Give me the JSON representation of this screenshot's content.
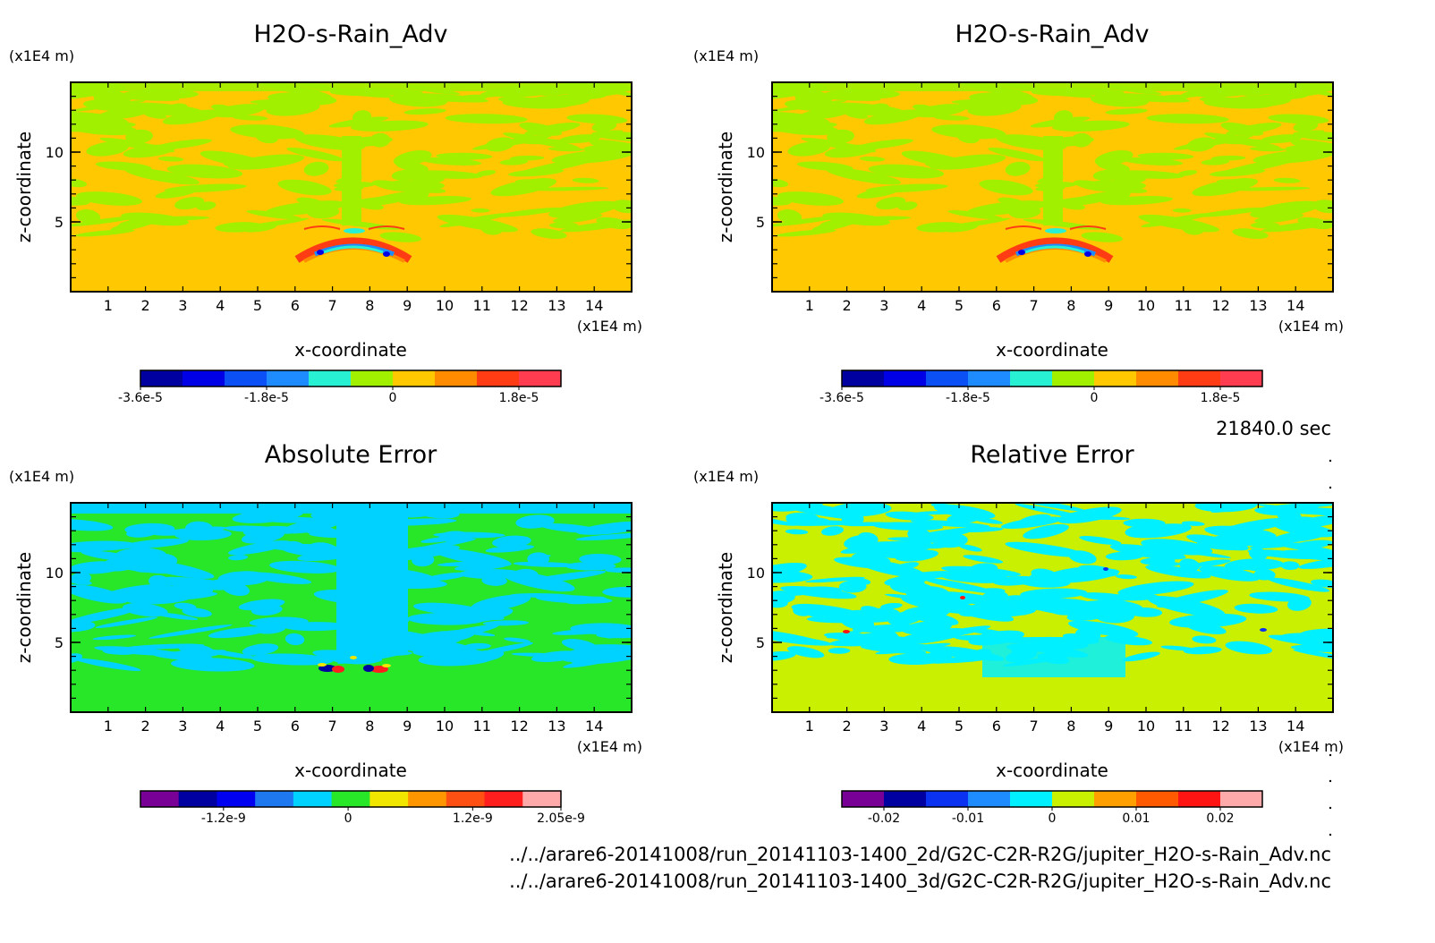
{
  "chart_data": [
    {
      "type": "heatmap",
      "title": "H2O-s-Rain_Adv",
      "xlabel": "x-coordinate",
      "ylabel": "z-coordinate",
      "x_unit": "(x1E4 m)",
      "y_unit": "(x1E4 m)",
      "xlim": [
        0,
        15
      ],
      "ylim": [
        0,
        15
      ],
      "x_ticks": [
        "1",
        "2",
        "3",
        "4",
        "5",
        "6",
        "7",
        "8",
        "9",
        "10",
        "11",
        "12",
        "13",
        "14"
      ],
      "y_ticks": [
        "5",
        "10"
      ],
      "background_level": "0 to 3e-6 (orange) with patches of -3e-6 to 0 (green)",
      "colorbar": {
        "colors": [
          "#0000a0",
          "#0000e6",
          "#0a50f5",
          "#1e8cff",
          "#28f0d2",
          "#a0f000",
          "#ffc800",
          "#ff8c00",
          "#ff3c14",
          "#ff3c50"
        ],
        "tick_labels": [
          "-3.6e-5",
          "-1.8e-5",
          "0",
          "1.8e-5"
        ],
        "tick_values": [
          -3.6e-05,
          -1.8e-05,
          0,
          1.8e-05
        ],
        "range": [
          -3.6e-05,
          2.4e-05
        ]
      }
    },
    {
      "type": "heatmap",
      "title": "H2O-s-Rain_Adv",
      "xlabel": "x-coordinate",
      "ylabel": "z-coordinate",
      "x_unit": "(x1E4 m)",
      "y_unit": "(x1E4 m)",
      "xlim": [
        0,
        15
      ],
      "ylim": [
        0,
        15
      ],
      "x_ticks": [
        "1",
        "2",
        "3",
        "4",
        "5",
        "6",
        "7",
        "8",
        "9",
        "10",
        "11",
        "12",
        "13",
        "14"
      ],
      "y_ticks": [
        "5",
        "10"
      ],
      "colorbar": {
        "colors": [
          "#0000a0",
          "#0000e6",
          "#0a50f5",
          "#1e8cff",
          "#28f0d2",
          "#a0f000",
          "#ffc800",
          "#ff8c00",
          "#ff3c14",
          "#ff3c50"
        ],
        "tick_labels": [
          "-3.6e-5",
          "-1.8e-5",
          "0",
          "1.8e-5"
        ],
        "tick_values": [
          -3.6e-05,
          -1.8e-05,
          0,
          1.8e-05
        ],
        "range": [
          -3.6e-05,
          2.4e-05
        ]
      }
    },
    {
      "type": "heatmap",
      "title": "Absolute Error",
      "xlabel": "x-coordinate",
      "ylabel": "z-coordinate",
      "x_unit": "(x1E4 m)",
      "y_unit": "(x1E4 m)",
      "xlim": [
        0,
        15
      ],
      "ylim": [
        0,
        15
      ],
      "x_ticks": [
        "1",
        "2",
        "3",
        "4",
        "5",
        "6",
        "7",
        "8",
        "9",
        "10",
        "11",
        "12",
        "13",
        "14"
      ],
      "y_ticks": [
        "5",
        "10"
      ],
      "colorbar": {
        "colors": [
          "#780096",
          "#0000a0",
          "#0000f0",
          "#1e78f0",
          "#00d2ff",
          "#28e628",
          "#f0e600",
          "#ff9600",
          "#ff5014",
          "#ff1e1e",
          "#ffaaaa"
        ],
        "tick_labels": [
          "-1.2e-9",
          "0",
          "1.2e-9",
          "2.05e-9"
        ],
        "tick_values": [
          -1.2e-09,
          0,
          1.2e-09,
          2.05e-09
        ],
        "range": [
          -2e-09,
          2.05e-09
        ]
      }
    },
    {
      "type": "heatmap",
      "title": "Relative Error",
      "xlabel": "x-coordinate",
      "ylabel": "z-coordinate",
      "x_unit": "(x1E4 m)",
      "y_unit": "(x1E4 m)",
      "xlim": [
        0,
        15
      ],
      "ylim": [
        0,
        15
      ],
      "x_ticks": [
        "1",
        "2",
        "3",
        "4",
        "5",
        "6",
        "7",
        "8",
        "9",
        "10",
        "11",
        "12",
        "13",
        "14"
      ],
      "y_ticks": [
        "5",
        "10"
      ],
      "colorbar": {
        "colors": [
          "#780096",
          "#0000a0",
          "#0a32f0",
          "#1e8cff",
          "#00f0ff",
          "#c8f000",
          "#ffa000",
          "#ff5a00",
          "#ff1414",
          "#ffaaaa"
        ],
        "tick_labels": [
          "-0.02",
          "-0.01",
          "0",
          "0.01",
          "0.02"
        ],
        "tick_values": [
          -0.02,
          -0.01,
          0,
          0.01,
          0.02
        ],
        "range": [
          -0.025,
          0.025
        ]
      }
    }
  ],
  "time_label": "21840.0 sec",
  "file_paths": [
    "../../arare6-20141008/run_20141103-1400_2d/G2C-C2R-R2G/jupiter_H2O-s-Rain_Adv.nc",
    "../../arare6-20141008/run_20141103-1400_3d/G2C-C2R-R2G/jupiter_H2O-s-Rain_Adv.nc"
  ],
  "fill_colors": {
    "p1_base": "#ffc800",
    "p1_patch": "#a0f000",
    "p3_base": "#28e628",
    "p3_patch": "#00d2ff",
    "p4_base": "#c8f000",
    "p4_patch": "#00f0ff"
  }
}
